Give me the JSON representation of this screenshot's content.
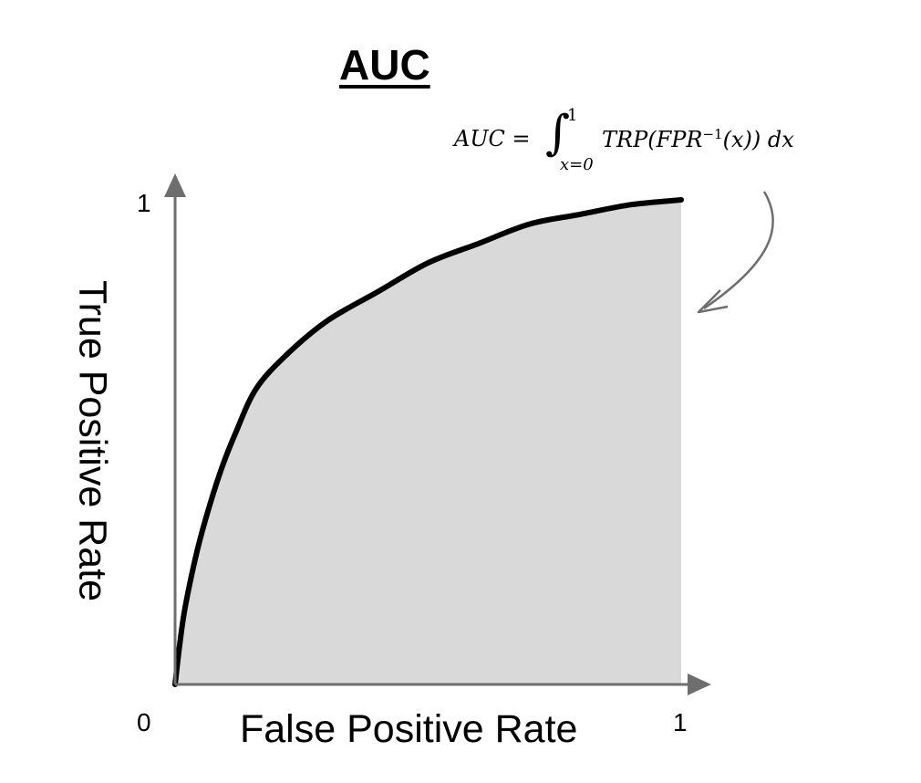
{
  "chart_data": {
    "type": "area",
    "title": "AUC",
    "xlabel": "False Positive Rate",
    "ylabel": "True Positive Rate",
    "xlim": [
      0,
      1
    ],
    "ylim": [
      0,
      1
    ],
    "x_ticks": [
      "0",
      "1"
    ],
    "y_ticks": [
      "1"
    ],
    "grid": false,
    "series": [
      {
        "x": [
          0,
          0.01,
          0.02,
          0.04,
          0.06,
          0.09,
          0.12,
          0.16,
          0.22,
          0.3,
          0.4,
          0.5,
          0.6,
          0.7,
          0.8,
          0.9,
          1.0
        ],
        "y": [
          0,
          0.09,
          0.16,
          0.26,
          0.34,
          0.44,
          0.52,
          0.61,
          0.68,
          0.75,
          0.81,
          0.87,
          0.91,
          0.95,
          0.97,
          0.99,
          1.0
        ]
      }
    ],
    "colors": {
      "curve": "#000000",
      "fill": "#d9d9d9",
      "axis": "#6e6e6e"
    },
    "annotation": {
      "lhs": "AUC =",
      "upper": "1",
      "lower": "x=0",
      "integrand": "TRP(FPR",
      "exponent": "−1",
      "integrand_tail": "(x)) dx"
    }
  }
}
